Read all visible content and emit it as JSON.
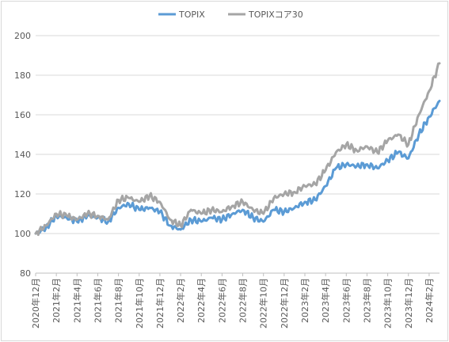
{
  "chart_data": {
    "type": "line",
    "title": "",
    "xlabel": "",
    "ylabel": "",
    "ylim": [
      80,
      200
    ],
    "yticks": [
      80,
      100,
      120,
      140,
      160,
      180,
      200
    ],
    "grid": "horizontal",
    "legend": "top-center",
    "x_tick_labels": [
      "2020年12月",
      "2021年2月",
      "2021年4月",
      "2021年6月",
      "2021年8月",
      "2021年10月",
      "2021年12月",
      "2022年2月",
      "2022年4月",
      "2022年6月",
      "2022年8月",
      "2022年10月",
      "2022年12月",
      "2023年2月",
      "2023年4月",
      "2023年6月",
      "2023年8月",
      "2023年10月",
      "2023年12月",
      "2024年2月"
    ],
    "x": [
      "2020-12",
      "2021-01",
      "2021-02",
      "2021-03",
      "2021-04",
      "2021-05",
      "2021-06",
      "2021-07",
      "2021-08",
      "2021-09",
      "2021-10",
      "2021-11",
      "2021-12",
      "2022-01",
      "2022-02",
      "2022-03",
      "2022-04",
      "2022-05",
      "2022-06",
      "2022-07",
      "2022-08",
      "2022-09",
      "2022-10",
      "2022-11",
      "2022-12",
      "2023-01",
      "2023-02",
      "2023-03",
      "2023-04",
      "2023-05",
      "2023-06",
      "2023-07",
      "2023-08",
      "2023-09",
      "2023-10",
      "2023-11",
      "2023-12",
      "2024-01",
      "2024-02",
      "2024-03"
    ],
    "series": [
      {
        "name": "TOPIX",
        "color": "#5b9bd5",
        "values": [
          100,
          103,
          109,
          108,
          106,
          109,
          108,
          106,
          113,
          115,
          112,
          113,
          111,
          104,
          102,
          107,
          106,
          108,
          107,
          110,
          112,
          108,
          106,
          112,
          111,
          113,
          116,
          117,
          124,
          133,
          135,
          134,
          135,
          133,
          137,
          141,
          138,
          150,
          159,
          167
        ]
      },
      {
        "name": "TOPIXコア30",
        "color": "#a5a5a5",
        "values": [
          100,
          104,
          110,
          109,
          107,
          110,
          109,
          107,
          117,
          118,
          116,
          119,
          116,
          107,
          104,
          112,
          110,
          112,
          111,
          114,
          116,
          112,
          110,
          118,
          120,
          121,
          124,
          125,
          132,
          141,
          145,
          142,
          144,
          141,
          147,
          150,
          145,
          160,
          172,
          186
        ]
      }
    ]
  }
}
